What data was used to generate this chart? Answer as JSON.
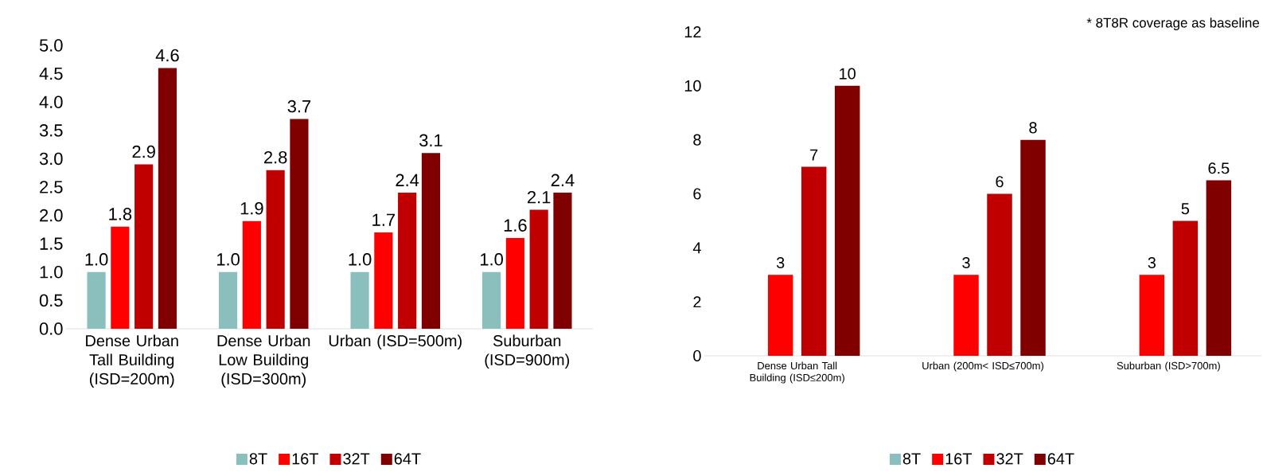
{
  "chart_data": [
    {
      "type": "bar",
      "categories": [
        "Dense Urban Tall Building (ISD=200m)",
        "Dense Urban Low Building (ISD=300m)",
        "Urban (ISD=500m)",
        "Suburban (ISD=900m)"
      ],
      "series": [
        {
          "name": "8T",
          "color": "#8bbfbd",
          "values": [
            1.0,
            1.0,
            1.0,
            1.0
          ],
          "value_labels": [
            "1.0",
            "1.0",
            "1.0",
            "1.0"
          ]
        },
        {
          "name": "16T",
          "color": "#ff0000",
          "values": [
            1.8,
            1.9,
            1.7,
            1.6
          ],
          "value_labels": [
            "1.8",
            "1.9",
            "1.7",
            "1.6"
          ]
        },
        {
          "name": "32T",
          "color": "#c00000",
          "values": [
            2.9,
            2.8,
            2.4,
            2.1
          ],
          "value_labels": [
            "2.9",
            "2.8",
            "2.4",
            "2.1"
          ]
        },
        {
          "name": "64T",
          "color": "#800000",
          "values": [
            4.6,
            3.7,
            3.1,
            2.4
          ],
          "value_labels": [
            "4.6",
            "3.7",
            "3.1",
            "2.4"
          ]
        }
      ],
      "ylim": [
        0,
        5
      ],
      "yticks": [
        {
          "value": 0,
          "label": "0.0"
        },
        0.5,
        {
          "value": 1,
          "label": "1.0"
        },
        1.5,
        {
          "value": 2,
          "label": "2.0"
        },
        2.5,
        {
          "value": 3,
          "label": "3.0"
        },
        3.5,
        {
          "value": 4,
          "label": "4.0"
        },
        4.5,
        {
          "value": 5,
          "label": "5.0"
        }
      ],
      "grid": false,
      "legend": "bottom"
    },
    {
      "type": "bar",
      "categories": [
        "Dense Urban Tall Building (ISD≤200m)",
        "Urban (200m< ISD≤700m)",
        "Suburban (ISD>700m)"
      ],
      "series": [
        {
          "name": "8T",
          "color": "#8bbfbd",
          "values": [
            null,
            null,
            null
          ]
        },
        {
          "name": "16T",
          "color": "#ff0000",
          "values": [
            3,
            3,
            3
          ]
        },
        {
          "name": "32T",
          "color": "#c00000",
          "values": [
            7,
            6,
            5
          ]
        },
        {
          "name": "64T",
          "color": "#800000",
          "values": [
            10,
            8,
            6.5
          ]
        }
      ],
      "ylim": [
        0,
        12
      ],
      "yticks": [
        0,
        2,
        4,
        6,
        8,
        10,
        12
      ],
      "data_labels": true,
      "annotations": [
        "* 8T8R coverage as baseline"
      ],
      "grid": false,
      "legend": "bottom"
    }
  ]
}
